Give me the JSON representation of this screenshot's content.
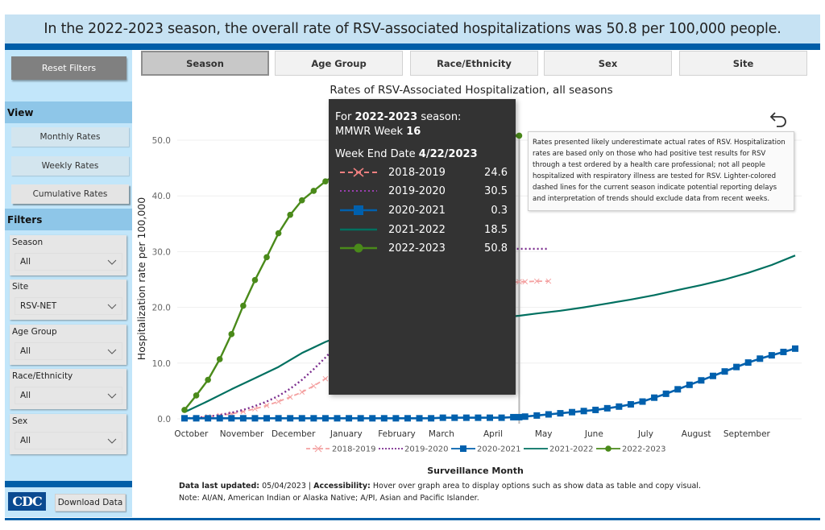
{
  "banner": {
    "text": "In the 2022-2023 season, the overall rate of RSV-associated hospitalizations was 50.8 per 100,000 people."
  },
  "sidebar": {
    "reset_label": "Reset Filters",
    "view_heading": "View",
    "view_buttons": [
      {
        "label": "Monthly Rates",
        "active": false
      },
      {
        "label": "Weekly Rates",
        "active": false
      },
      {
        "label": "Cumulative Rates",
        "active": true
      }
    ],
    "filters_heading": "Filters",
    "filters": [
      {
        "label": "Season",
        "value": "All"
      },
      {
        "label": "Site",
        "value": "RSV-NET"
      },
      {
        "label": "Age Group",
        "value": "All"
      },
      {
        "label": "Race/Ethnicity",
        "value": "All"
      },
      {
        "label": "Sex",
        "value": "All"
      }
    ],
    "logo_text": "CDC",
    "download_label": "Download Data"
  },
  "tabs": [
    {
      "label": "Season",
      "active": true
    },
    {
      "label": "Age Group",
      "active": false
    },
    {
      "label": "Race/Ethnicity",
      "active": false
    },
    {
      "label": "Sex",
      "active": false
    },
    {
      "label": "Site",
      "active": false
    }
  ],
  "note": {
    "text": "Rates presented likely underestimate actual rates of RSV. Hospitalization rates are based only on those who had positive test results for RSV through a test ordered by a health care professional; not all people hospitalized with respiratory illness are tested for RSV. Lighter-colored dashed lines for the current season indicate potential reporting delays and interpretation of trends should exclude data from recent weeks."
  },
  "tooltip": {
    "season_prefix": "For ",
    "season": "2022-2023",
    "season_suffix": " season:",
    "week_label": "MMWR Week ",
    "week": "16",
    "date_label": "Week End Date ",
    "date": "4/22/2023",
    "rows": [
      {
        "name": "2018-2019",
        "value": "24.6"
      },
      {
        "name": "2019-2020",
        "value": "30.5"
      },
      {
        "name": "2020-2021",
        "value": "0.3"
      },
      {
        "name": "2021-2022",
        "value": "18.5"
      },
      {
        "name": "2022-2023",
        "value": "50.8"
      }
    ]
  },
  "footer": {
    "updated_label": "Data last updated:",
    "updated_value": " 05/04/2023 | ",
    "access_label": "Accessibility:",
    "access_text": " Hover over graph area to display options such as show data as table and copy visual.",
    "note": "Note: AI/AN, American Indian or Alaska Native; A/PI, Asian and Pacific Islander."
  },
  "chart_data": {
    "type": "line",
    "title": "Rates of RSV-Associated Hospitalization, all seasons",
    "xlabel": "Surveillance Month",
    "ylabel": "Hospitalization rate per 100,000",
    "ylim": [
      0,
      52
    ],
    "yticks": [
      0.0,
      10.0,
      20.0,
      30.0,
      40.0,
      50.0
    ],
    "ytick_labels": [
      "0.0",
      "10.0",
      "20.0",
      "30.0",
      "40.0",
      "50.0"
    ],
    "x_unit": "surveillance week index (0 = first week of October, 52 weeks)",
    "xlim": [
      0,
      52
    ],
    "month_ticks": [
      {
        "label": "October",
        "week": 0.3
      },
      {
        "label": "November",
        "week": 4.6
      },
      {
        "label": "December",
        "week": 9.0
      },
      {
        "label": "January",
        "week": 13.5
      },
      {
        "label": "February",
        "week": 17.8
      },
      {
        "label": "March",
        "week": 21.6
      },
      {
        "label": "April",
        "week": 26.0
      },
      {
        "label": "May",
        "week": 30.3
      },
      {
        "label": "June",
        "week": 34.6
      },
      {
        "label": "July",
        "week": 39.0
      },
      {
        "label": "August",
        "week": 43.3
      },
      {
        "label": "September",
        "week": 47.6
      }
    ],
    "hover_week": 28.5,
    "grid": true,
    "legend_position": "bottom",
    "series": [
      {
        "name": "2018-2019",
        "color": "#f08080",
        "style": "dashed-x",
        "x": [
          0,
          1,
          2,
          3,
          4,
          5,
          6,
          7,
          8,
          9,
          10,
          11,
          12,
          13,
          14,
          15,
          16,
          17,
          18,
          19,
          20,
          21,
          22,
          23,
          24,
          25,
          26,
          27,
          28,
          28.5,
          29,
          30,
          31
        ],
        "values": [
          0.1,
          0.2,
          0.4,
          0.6,
          0.9,
          1.3,
          1.8,
          2.4,
          3.1,
          3.9,
          4.8,
          5.9,
          7.2,
          8.6,
          10.2,
          11.8,
          13.4,
          15.0,
          16.5,
          17.8,
          19.0,
          20.1,
          21.1,
          22.0,
          22.8,
          23.5,
          24.0,
          24.3,
          24.5,
          24.6,
          24.6,
          24.7,
          24.7
        ]
      },
      {
        "name": "2019-2020",
        "color": "#7b2d8e",
        "style": "dotted",
        "x": [
          0,
          1,
          2,
          3,
          4,
          5,
          6,
          7,
          8,
          9,
          10,
          11,
          12,
          13,
          14,
          15,
          16,
          17,
          18,
          19,
          20,
          21,
          22,
          23,
          24,
          25,
          26,
          27,
          28,
          28.5,
          29,
          30,
          31
        ],
        "values": [
          0.1,
          0.2,
          0.4,
          0.7,
          1.1,
          1.6,
          2.3,
          3.1,
          4.1,
          5.4,
          7.0,
          8.9,
          11.0,
          13.2,
          15.4,
          17.6,
          19.7,
          21.6,
          23.3,
          24.8,
          26.1,
          27.2,
          28.1,
          28.9,
          29.5,
          29.9,
          30.2,
          30.4,
          30.5,
          30.5,
          30.5,
          30.5,
          30.5
        ]
      },
      {
        "name": "2020-2021",
        "color": "#0060ad",
        "style": "square",
        "x": [
          0,
          1,
          2,
          3,
          4,
          5,
          6,
          7,
          8,
          9,
          10,
          11,
          12,
          13,
          14,
          15,
          16,
          17,
          18,
          19,
          20,
          21,
          22,
          23,
          24,
          25,
          26,
          27,
          28,
          28.5,
          29,
          30,
          31,
          32,
          33,
          34,
          35,
          36,
          37,
          38,
          39,
          40,
          41,
          42,
          43,
          44,
          45,
          46,
          47,
          48,
          49,
          50,
          51,
          52
        ],
        "values": [
          0.1,
          0.1,
          0.1,
          0.1,
          0.1,
          0.1,
          0.1,
          0.1,
          0.1,
          0.1,
          0.1,
          0.1,
          0.1,
          0.1,
          0.1,
          0.1,
          0.1,
          0.1,
          0.1,
          0.1,
          0.1,
          0.1,
          0.2,
          0.2,
          0.2,
          0.2,
          0.2,
          0.2,
          0.3,
          0.3,
          0.4,
          0.6,
          0.8,
          1.0,
          1.2,
          1.4,
          1.6,
          1.9,
          2.2,
          2.6,
          3.1,
          3.8,
          4.5,
          5.3,
          6.1,
          6.9,
          7.7,
          8.5,
          9.3,
          10.1,
          10.8,
          11.4,
          12.0,
          12.6
        ]
      },
      {
        "name": "2021-2022",
        "color": "#007060",
        "style": "solid",
        "x": [
          0,
          2,
          4,
          6,
          8,
          10,
          12,
          14,
          16,
          18,
          20,
          22,
          24,
          26,
          28,
          28.5,
          30,
          32,
          34,
          36,
          38,
          40,
          42,
          44,
          46,
          48,
          50,
          52
        ],
        "values": [
          1.2,
          3.2,
          5.3,
          7.3,
          9.3,
          11.8,
          13.8,
          15.4,
          16.5,
          17.1,
          17.5,
          17.8,
          18.0,
          18.2,
          18.4,
          18.5,
          18.9,
          19.4,
          20.0,
          20.7,
          21.4,
          22.2,
          23.1,
          24.0,
          25.0,
          26.2,
          27.6,
          29.3
        ]
      },
      {
        "name": "2022-2023",
        "color": "#4a8a1a",
        "style": "circle",
        "x": [
          0,
          1,
          2,
          3,
          4,
          5,
          6,
          7,
          8,
          9,
          10,
          11,
          12,
          13,
          14,
          15,
          16,
          17,
          18,
          19,
          20,
          21,
          22,
          23,
          24,
          25,
          26,
          27,
          28,
          28.5
        ],
        "values": [
          1.6,
          4.2,
          7.0,
          10.7,
          15.2,
          20.3,
          24.9,
          29.0,
          33.3,
          36.6,
          39.2,
          40.9,
          42.6,
          44.0,
          45.3,
          46.4,
          47.3,
          48.1,
          48.7,
          49.2,
          49.6,
          49.9,
          50.2,
          50.4,
          50.5,
          50.6,
          50.7,
          50.7,
          50.8,
          50.8
        ]
      }
    ]
  }
}
